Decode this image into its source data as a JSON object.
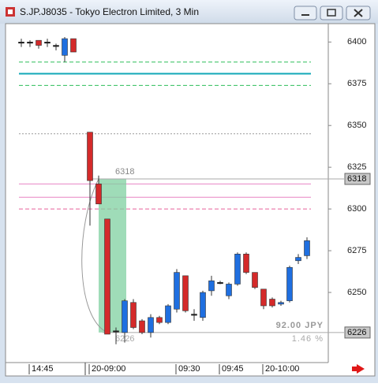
{
  "chart_data": {
    "type": "candlestick",
    "title": "S.JP.J8035 - Tokyo Electron Limited, 3 Min",
    "categories": [
      null,
      "14:45",
      null,
      null,
      null,
      null,
      null,
      "20-09:00",
      null,
      null,
      null,
      null,
      null,
      null,
      null,
      null,
      null,
      "09:30",
      null,
      null,
      null,
      null,
      "09:45",
      null,
      null,
      null,
      null,
      "20-10:00",
      null,
      null,
      null,
      null,
      null
    ],
    "open": [
      6400,
      6400,
      6401,
      6400,
      6398,
      6392,
      6402,
      6346,
      6315,
      6294,
      6227,
      6226,
      6244,
      6233,
      6226,
      6235,
      6232,
      6240,
      6260,
      6237,
      6235,
      6251,
      6256,
      6248,
      6255,
      6273,
      6262,
      6252,
      6246,
      6243,
      6245,
      6269,
      6272
    ],
    "high": [
      6402,
      6401,
      6401,
      6402,
      6399,
      6403,
      6402,
      6346,
      6320,
      6294,
      6229,
      6246,
      6246,
      6234,
      6237,
      6236,
      6243,
      6264,
      6260,
      6240,
      6251,
      6260,
      6257,
      6256,
      6274,
      6274,
      6262,
      6252,
      6247,
      6245,
      6266,
      6273,
      6283
    ],
    "low": [
      6397,
      6397,
      6396,
      6397,
      6395,
      6388,
      6394,
      6290,
      6303,
      6225,
      6219,
      6220,
      6228,
      6225,
      6223,
      6231,
      6231,
      6238,
      6238,
      6233,
      6233,
      6248,
      6255,
      6246,
      6254,
      6261,
      6252,
      6240,
      6241,
      6242,
      6244,
      6267,
      6270
    ],
    "close": [
      6400,
      6400,
      6398,
      6400,
      6398,
      6402,
      6394,
      6317,
      6303,
      6225,
      6227,
      6245,
      6229,
      6226,
      6235,
      6232,
      6242,
      6262,
      6239,
      6237,
      6250,
      6257,
      6256,
      6255,
      6273,
      6262,
      6253,
      6242,
      6242,
      6244,
      6265,
      6271,
      6281
    ],
    "up_color": "#1f6fe0",
    "down_color": "#d42a2a",
    "flat_color": "#222222",
    "ylim": [
      6208,
      6411
    ],
    "yticks": [
      6250,
      6275,
      6300,
      6325,
      6350,
      6375,
      6400
    ],
    "levels": [
      {
        "value": 6388,
        "color": "#2fbf5a",
        "style": "dashed"
      },
      {
        "value": 6381,
        "color": "#12a8b8",
        "style": "solid"
      },
      {
        "value": 6374,
        "color": "#2fbf5a",
        "style": "dashed"
      },
      {
        "value": 6345,
        "color": "#999999",
        "style": "dotted"
      },
      {
        "value": 6315,
        "color": "#e884c4",
        "style": "solid"
      },
      {
        "value": 6307,
        "color": "#e884c4",
        "style": "solid"
      },
      {
        "value": 6300,
        "color": "#e8609a",
        "style": "dashed"
      }
    ],
    "measure": {
      "high": 6318,
      "low": 6226,
      "change_label": "92.00 JPY",
      "percent_label": "1.46 %"
    }
  }
}
